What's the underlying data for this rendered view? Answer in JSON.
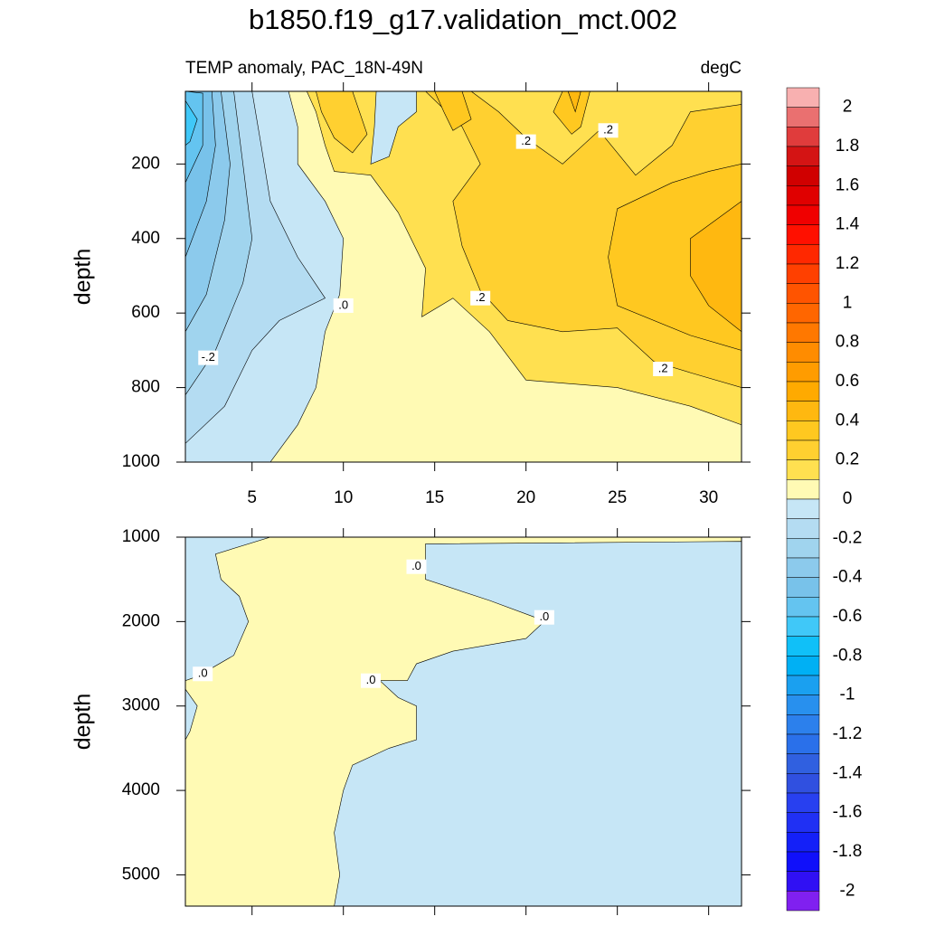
{
  "chart_data": [
    {
      "type": "contour",
      "title": "b1850.f19_g17.validation_mct.002",
      "subtitle": "TEMP anomaly, PAC_18N-49N",
      "units": "degC",
      "y_label": "depth",
      "xlim": [
        1.35,
        31.8
      ],
      "ylim": [
        5,
        1000
      ],
      "y_inverted": true,
      "xticks": [
        5,
        10,
        15,
        20,
        25,
        30
      ],
      "yticks": [
        200,
        400,
        600,
        800,
        1000
      ],
      "regions": [
        {
          "level": 0,
          "x": [
            1.35,
            31.8,
            31.8,
            1.35
          ],
          "y": [
            5,
            5,
            1000,
            1000
          ]
        },
        {
          "level": 0.1,
          "x": [
            8,
            31.8,
            31.8,
            29,
            25,
            20,
            18,
            16,
            14.3,
            14.5,
            13,
            11.5,
            9.5,
            9,
            8.5
          ],
          "y": [
            5,
            5,
            900,
            850,
            800,
            780,
            650,
            560,
            610,
            480,
            330,
            230,
            220,
            150,
            60
          ]
        },
        {
          "level": -0.1,
          "x": [
            1.35,
            7,
            7.5,
            7.5,
            9,
            10,
            9.8,
            9,
            8.5,
            7.5,
            6,
            1.35
          ],
          "y": [
            5,
            5,
            100,
            200,
            300,
            400,
            550,
            650,
            800,
            900,
            1000,
            1000
          ]
        },
        {
          "level": -0.1,
          "x": [
            11.8,
            14,
            14,
            13,
            12.5,
            11.5,
            11.7
          ],
          "y": [
            5,
            5,
            60,
            100,
            180,
            200,
            100
          ]
        },
        {
          "level": -0.2,
          "x": [
            1.35,
            5,
            5.5,
            6,
            7.5,
            9,
            6.5,
            5,
            3.5,
            1.35
          ],
          "y": [
            5,
            5,
            150,
            300,
            450,
            560,
            620,
            700,
            850,
            950
          ]
        },
        {
          "level": -0.3,
          "x": [
            1.35,
            4,
            4.5,
            5,
            4.5,
            3,
            1.35
          ],
          "y": [
            5,
            5,
            200,
            400,
            520,
            700,
            820
          ]
        },
        {
          "level": -0.4,
          "x": [
            1.35,
            3.3,
            3.8,
            3.5,
            2.5,
            1.35
          ],
          "y": [
            5,
            5,
            200,
            350,
            550,
            650
          ]
        },
        {
          "level": -0.5,
          "x": [
            1.35,
            2.8,
            3,
            2.5,
            1.35
          ],
          "y": [
            5,
            5,
            150,
            300,
            450
          ]
        },
        {
          "level": -0.6,
          "x": [
            1.35,
            2.3,
            2.3,
            1.35
          ],
          "y": [
            5,
            10,
            150,
            250
          ]
        },
        {
          "level": -0.7,
          "x": [
            1.35,
            2,
            1.6,
            1.35
          ],
          "y": [
            30,
            80,
            140,
            150
          ]
        },
        {
          "level": 0.2,
          "x": [
            14.5,
            17,
            18.5,
            20,
            22,
            24,
            25,
            26,
            28,
            29,
            31.8,
            31.8,
            29,
            27,
            25,
            22,
            19,
            17.5,
            16.5,
            16,
            17.5,
            16.5
          ],
          "y": [
            5,
            5,
            60,
            130,
            200,
            110,
            170,
            230,
            150,
            60,
            40,
            800,
            760,
            730,
            640,
            650,
            620,
            540,
            420,
            300,
            200,
            100
          ]
        },
        {
          "level": 0.2,
          "x": [
            8.5,
            10.5,
            11.3,
            10.5,
            9.5,
            8.8
          ],
          "y": [
            5,
            5,
            120,
            170,
            130,
            60
          ]
        },
        {
          "level": 0.3,
          "x": [
            25,
            28,
            30,
            31.8,
            31.8,
            29,
            25,
            24.5
          ],
          "y": [
            320,
            250,
            220,
            200,
            700,
            660,
            580,
            450
          ]
        },
        {
          "level": 0.3,
          "x": [
            15,
            16.5,
            17,
            16,
            15.5
          ],
          "y": [
            5,
            5,
            80,
            110,
            60
          ]
        },
        {
          "level": 0.3,
          "x": [
            22,
            23.5,
            23,
            22.5,
            21.5
          ],
          "y": [
            5,
            5,
            100,
            120,
            60
          ]
        },
        {
          "level": 0.4,
          "x": [
            29,
            31.8,
            31.8,
            30,
            29
          ],
          "y": [
            400,
            300,
            650,
            580,
            500
          ]
        },
        {
          "level": 0.4,
          "x": [
            22.3,
            23,
            22.7
          ],
          "y": [
            5,
            5,
            60
          ]
        }
      ],
      "contour_labels": [
        {
          "value": 0.2,
          "label": ".2",
          "x": 20,
          "y": 140
        },
        {
          "value": 0.2,
          "label": ".2",
          "x": 24.5,
          "y": 110
        },
        {
          "value": -0.2,
          "label": "-.2",
          "x": 2.6,
          "y": 720
        },
        {
          "value": 0,
          "label": ".0",
          "x": 10,
          "y": 580
        },
        {
          "value": 0.2,
          "label": ".2",
          "x": 17.5,
          "y": 560
        },
        {
          "value": 0.2,
          "label": ".2",
          "x": 27.5,
          "y": 750
        }
      ]
    },
    {
      "type": "contour",
      "y_label": "depth",
      "xlim": [
        1.35,
        31.8
      ],
      "ylim": [
        1000,
        5370
      ],
      "y_inverted": true,
      "xticks": [
        5,
        10,
        15,
        20,
        25,
        30
      ],
      "yticks": [
        1000,
        2000,
        3000,
        4000,
        5000
      ],
      "regions": [
        {
          "level": 0,
          "x": [
            1.35,
            31.8,
            31.8,
            1.35
          ],
          "y": [
            1000,
            1000,
            5370,
            5370
          ]
        },
        {
          "level": -0.1,
          "x": [
            31.8,
            31.8,
            9.5,
            9.8,
            9.5,
            10,
            10.5,
            12.5,
            14,
            14,
            13,
            12,
            13.5,
            14,
            16,
            20,
            21,
            20.5,
            18,
            14.5,
            14.5
          ],
          "y": [
            1050,
            5370,
            5370,
            5000,
            4500,
            4000,
            3700,
            3500,
            3400,
            3000,
            2900,
            2700,
            2700,
            2500,
            2350,
            2200,
            2000,
            1950,
            1750,
            1500,
            1080
          ]
        },
        {
          "level": -0.1,
          "x": [
            1.35,
            6,
            3,
            3.3,
            4.3,
            4.8,
            4,
            2,
            1.35
          ],
          "y": [
            1000,
            1000,
            1200,
            1500,
            1700,
            2000,
            2400,
            2650,
            2700
          ]
        },
        {
          "level": -0.1,
          "x": [
            1.35,
            2,
            1.6,
            1.35
          ],
          "y": [
            2800,
            3000,
            3300,
            3400
          ]
        }
      ],
      "contour_labels": [
        {
          "value": 0,
          "label": ".0",
          "x": 14,
          "y": 1350
        },
        {
          "value": 0,
          "label": ".0",
          "x": 21,
          "y": 1950
        },
        {
          "value": 0,
          "label": ".0",
          "x": 2.3,
          "y": 2620
        },
        {
          "value": 0,
          "label": ".0",
          "x": 11.5,
          "y": 2700
        }
      ]
    }
  ],
  "colorbar": {
    "levels": [
      2,
      1.9,
      1.8,
      1.7,
      1.6,
      1.5,
      1.4,
      1.3,
      1.2,
      1.1,
      1,
      0.9,
      0.8,
      0.7,
      0.6,
      0.5,
      0.4,
      0.3,
      0.2,
      0.1,
      0,
      -0.1,
      -0.2,
      -0.3,
      -0.4,
      -0.5,
      -0.6,
      -0.7,
      -0.8,
      -0.9,
      -1,
      -1.1,
      -1.2,
      -1.3,
      -1.4,
      -1.5,
      -1.6,
      -1.7,
      -1.8,
      -1.9,
      -2
    ],
    "colors": [
      "#f8b0b0",
      "#ea7070",
      "#e03c3c",
      "#d41414",
      "#d00000",
      "#e00000",
      "#f00000",
      "#ff1000",
      "#ff2800",
      "#ff4000",
      "#ff5400",
      "#ff6600",
      "#ff7800",
      "#ff8c00",
      "#ff9c00",
      "#ffaa00",
      "#ffb810",
      "#ffc820",
      "#ffd030",
      "#ffe050",
      "#fffab4",
      "#c6e6f6",
      "#b4dcf2",
      "#a0d4ee",
      "#8ccaec",
      "#78c2ea",
      "#64c4f0",
      "#40c8f8",
      "#10c0f8",
      "#00b0f4",
      "#1aa0f0",
      "#2890ee",
      "#2c80ec",
      "#2a70ea",
      "#3060e0",
      "#3050e0",
      "#2840f0",
      "#2030f4",
      "#1420f8",
      "#1010fa",
      "#3010f4",
      "#8020f0"
    ],
    "ticks": [
      2,
      1.8,
      1.6,
      1.4,
      1.2,
      1,
      0.8,
      0.6,
      0.4,
      0.2,
      0,
      -0.2,
      -0.4,
      -0.6,
      -0.8,
      -1,
      -1.2,
      -1.4,
      -1.6,
      -1.8,
      -2
    ]
  }
}
